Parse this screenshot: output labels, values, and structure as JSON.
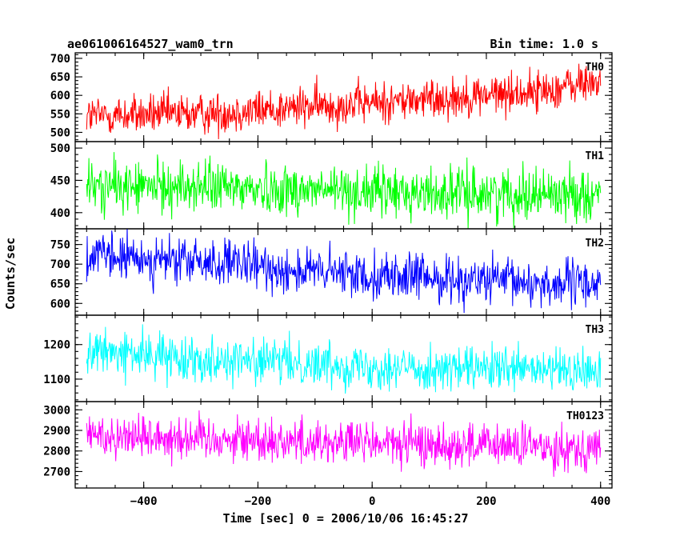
{
  "header": {
    "title": "ae061006164527_wam0_trn",
    "bin_time": "Bin time: 1.0 s"
  },
  "chart_data": {
    "type": "line",
    "xlabel": "Time [sec] 0 = 2006/10/06 16:45:27",
    "ylabel": "Counts/sec",
    "xlim": [
      -520,
      420
    ],
    "xticks": [
      -400,
      -200,
      0,
      200,
      400
    ],
    "data_x_range": [
      -500,
      400
    ],
    "panels": [
      {
        "name": "TH0",
        "color": "#ff0000",
        "ylim": [
          475,
          715
        ],
        "yticks": [
          500,
          550,
          600,
          650,
          700
        ],
        "trend": [
          [
            -500,
            545
          ],
          [
            -300,
            550
          ],
          [
            -100,
            570
          ],
          [
            100,
            590
          ],
          [
            300,
            612
          ],
          [
            400,
            640
          ]
        ],
        "noise": 28
      },
      {
        "name": "TH1",
        "color": "#00ff00",
        "ylim": [
          375,
          510
        ],
        "yticks": [
          400,
          450,
          500
        ],
        "trend": [
          [
            -500,
            440
          ],
          [
            -300,
            440
          ],
          [
            -100,
            435
          ],
          [
            100,
            430
          ],
          [
            300,
            430
          ],
          [
            400,
            428
          ]
        ],
        "noise": 20
      },
      {
        "name": "TH2",
        "color": "#0000ff",
        "ylim": [
          570,
          790
        ],
        "yticks": [
          600,
          650,
          700,
          750
        ],
        "trend": [
          [
            -500,
            720
          ],
          [
            -300,
            705
          ],
          [
            -100,
            680
          ],
          [
            100,
            665
          ],
          [
            300,
            650
          ],
          [
            400,
            650
          ]
        ],
        "noise": 30
      },
      {
        "name": "TH3",
        "color": "#00ffff",
        "ylim": [
          1035,
          1285
        ],
        "yticks": [
          1100,
          1200
        ],
        "trend": [
          [
            -500,
            1180
          ],
          [
            -300,
            1160
          ],
          [
            -100,
            1145
          ],
          [
            100,
            1130
          ],
          [
            300,
            1125
          ],
          [
            400,
            1120
          ]
        ],
        "noise": 32
      },
      {
        "name": "TH0123",
        "color": "#ff00ff",
        "ylim": [
          2620,
          3040
        ],
        "yticks": [
          2700,
          2800,
          2900,
          3000
        ],
        "trend": [
          [
            -500,
            2880
          ],
          [
            -300,
            2865
          ],
          [
            -100,
            2845
          ],
          [
            100,
            2830
          ],
          [
            300,
            2820
          ],
          [
            400,
            2815
          ]
        ],
        "noise": 55
      }
    ]
  }
}
